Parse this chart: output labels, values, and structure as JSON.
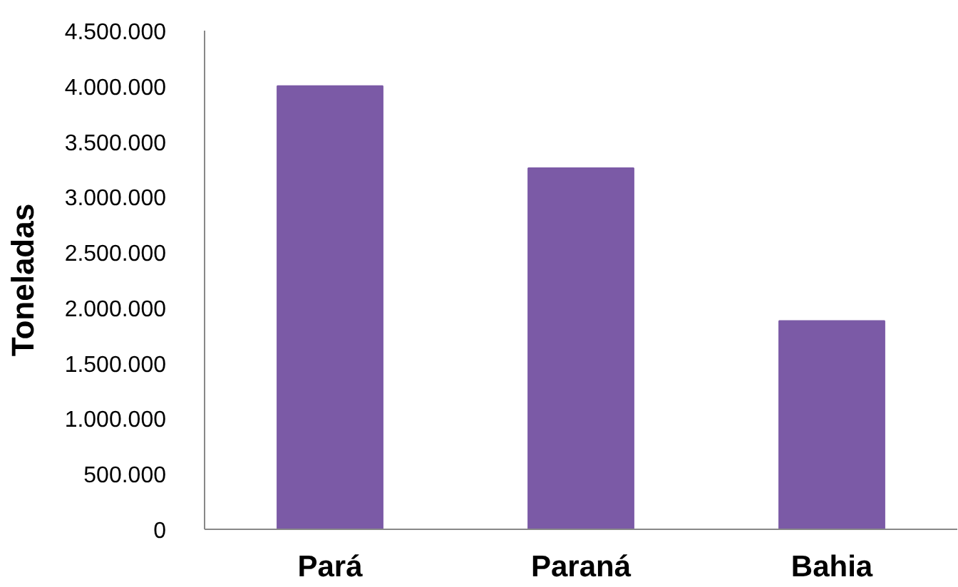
{
  "chart_data": {
    "type": "bar",
    "ylabel": "Toneladas",
    "categories": [
      "Pará",
      "Paraná",
      "Bahia"
    ],
    "values": [
      4000000,
      3260000,
      1880000
    ],
    "color": "#7b5aa6",
    "ylim": [
      0,
      4500000
    ],
    "yticks": [
      {
        "value": 0,
        "label": "0"
      },
      {
        "value": 500000,
        "label": "500.000"
      },
      {
        "value": 1000000,
        "label": "1.000.000"
      },
      {
        "value": 1500000,
        "label": "1.500.000"
      },
      {
        "value": 2000000,
        "label": "2.000.000"
      },
      {
        "value": 2500000,
        "label": "2.500.000"
      },
      {
        "value": 3000000,
        "label": "3.000.000"
      },
      {
        "value": 3500000,
        "label": "3.500.000"
      },
      {
        "value": 4000000,
        "label": "4.000.000"
      },
      {
        "value": 4500000,
        "label": "4.500.000"
      }
    ]
  }
}
